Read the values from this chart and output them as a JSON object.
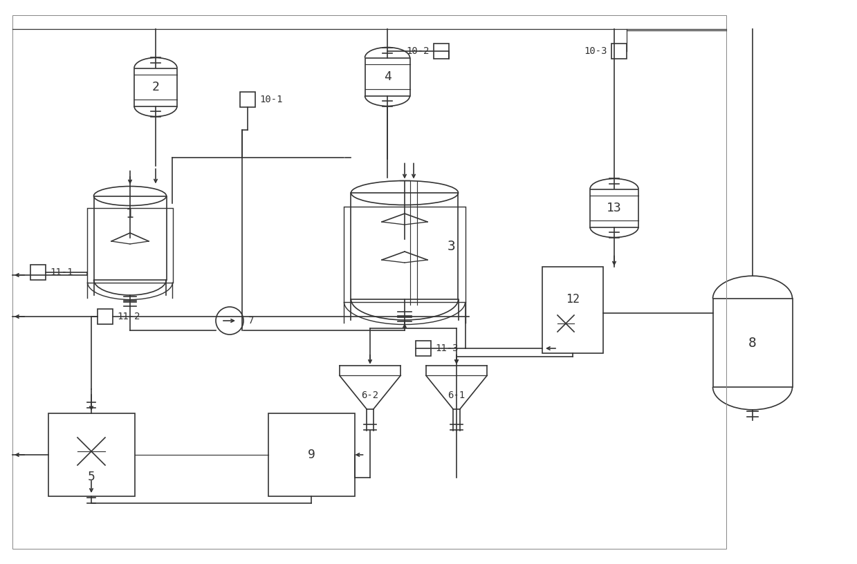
{
  "bg_color": "#ffffff",
  "line_color": "#333333",
  "lw": 1.2,
  "fig_w": 12.39,
  "fig_h": 8.16
}
